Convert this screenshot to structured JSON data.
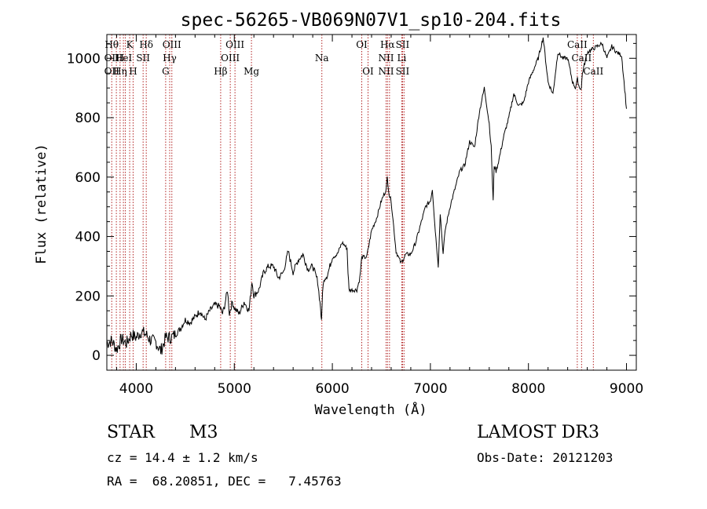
{
  "chart_data": {
    "type": "line",
    "title": "spec-56265-VB069N07V1_sp10-204.fits",
    "xlabel": "Wavelength (Å)",
    "ylabel": "Flux (relative)",
    "xlim": [
      3700,
      9100
    ],
    "ylim": [
      -50,
      1080
    ],
    "xticks": [
      4000,
      5000,
      6000,
      7000,
      8000,
      9000
    ],
    "yticks": [
      0,
      200,
      400,
      600,
      800,
      1000
    ],
    "grid": false,
    "series": [
      {
        "name": "flux",
        "x": [
          3700,
          3750,
          3800,
          3850,
          3900,
          3950,
          4000,
          4050,
          4100,
          4150,
          4200,
          4250,
          4280,
          4300,
          4350,
          4400,
          4450,
          4500,
          4550,
          4600,
          4650,
          4700,
          4750,
          4800,
          4850,
          4880,
          4900,
          4930,
          4950,
          4980,
          5000,
          5050,
          5100,
          5150,
          5180,
          5200,
          5250,
          5300,
          5350,
          5400,
          5450,
          5500,
          5550,
          5600,
          5650,
          5700,
          5750,
          5800,
          5850,
          5880,
          5890,
          5900,
          5920,
          5950,
          6000,
          6050,
          6100,
          6150,
          6160,
          6170,
          6200,
          6250,
          6280,
          6300,
          6350,
          6400,
          6450,
          6500,
          6550,
          6560,
          6580,
          6600,
          6650,
          6700,
          6750,
          6800,
          6850,
          6900,
          6950,
          7000,
          7020,
          7050,
          7080,
          7100,
          7130,
          7150,
          7200,
          7250,
          7300,
          7350,
          7400,
          7450,
          7500,
          7550,
          7600,
          7620,
          7640,
          7650,
          7670,
          7700,
          7750,
          7800,
          7850,
          7900,
          7950,
          8000,
          8050,
          8100,
          8150,
          8200,
          8250,
          8300,
          8350,
          8400,
          8450,
          8480,
          8500,
          8520,
          8540,
          8550,
          8600,
          8650,
          8700,
          8750,
          8800,
          8850,
          8900,
          8950,
          9000
        ],
        "values": [
          40,
          50,
          20,
          55,
          40,
          70,
          60,
          80,
          70,
          50,
          45,
          15,
          40,
          60,
          60,
          70,
          90,
          120,
          110,
          130,
          150,
          120,
          150,
          170,
          165,
          140,
          165,
          220,
          140,
          180,
          160,
          140,
          180,
          150,
          250,
          200,
          220,
          280,
          300,
          300,
          260,
          280,
          350,
          280,
          320,
          340,
          290,
          300,
          250,
          160,
          110,
          220,
          260,
          270,
          330,
          340,
          380,
          360,
          280,
          220,
          220,
          220,
          260,
          330,
          330,
          420,
          460,
          520,
          560,
          600,
          540,
          520,
          350,
          310,
          340,
          340,
          380,
          440,
          500,
          520,
          560,
          420,
          300,
          480,
          340,
          420,
          500,
          560,
          620,
          640,
          720,
          700,
          820,
          900,
          780,
          700,
          520,
          640,
          620,
          660,
          740,
          800,
          880,
          840,
          850,
          920,
          960,
          1000,
          1070,
          920,
          880,
          1020,
          1000,
          1000,
          920,
          900,
          930,
          900,
          900,
          950,
          1020,
          1030,
          1040,
          1050,
          1000,
          1040,
          1020,
          1010,
          830
        ],
        "color": "#000000"
      }
    ],
    "emission_lines": [
      {
        "x": 3750,
        "labels": [
          "Hθ",
          "OII",
          "OII"
        ]
      },
      {
        "x": 3797,
        "labels": [
          "",
          "",
          ""
        ]
      },
      {
        "x": 3835,
        "labels": [
          "",
          "H",
          "Hη"
        ]
      },
      {
        "x": 3869,
        "labels": [
          "",
          "HeI",
          ""
        ]
      },
      {
        "x": 3889,
        "labels": [
          "",
          "",
          ""
        ]
      },
      {
        "x": 3933,
        "labels": [
          "K",
          "",
          ""
        ]
      },
      {
        "x": 3968,
        "labels": [
          "",
          "",
          "H"
        ]
      },
      {
        "x": 4070,
        "labels": [
          "",
          "SII",
          ""
        ]
      },
      {
        "x": 4102,
        "labels": [
          "Hδ",
          "",
          ""
        ]
      },
      {
        "x": 4300,
        "labels": [
          "",
          "",
          "G"
        ]
      },
      {
        "x": 4341,
        "labels": [
          "",
          "Hγ",
          ""
        ]
      },
      {
        "x": 4363,
        "labels": [
          "OIII",
          "",
          ""
        ]
      },
      {
        "x": 4861,
        "labels": [
          "",
          "",
          "Hβ"
        ]
      },
      {
        "x": 4959,
        "labels": [
          "",
          "OIII",
          ""
        ]
      },
      {
        "x": 5007,
        "labels": [
          "OIII",
          "",
          ""
        ]
      },
      {
        "x": 5175,
        "labels": [
          "",
          "",
          "Mg"
        ]
      },
      {
        "x": 5893,
        "labels": [
          "",
          "Na",
          ""
        ]
      },
      {
        "x": 6300,
        "labels": [
          "OI",
          "",
          ""
        ]
      },
      {
        "x": 6364,
        "labels": [
          "",
          "",
          "OI"
        ]
      },
      {
        "x": 6548,
        "labels": [
          "",
          "NII",
          "NII"
        ]
      },
      {
        "x": 6563,
        "labels": [
          "Hα",
          "",
          ""
        ]
      },
      {
        "x": 6583,
        "labels": [
          "",
          "",
          ""
        ]
      },
      {
        "x": 6708,
        "labels": [
          "",
          "Li",
          ""
        ]
      },
      {
        "x": 6716,
        "labels": [
          "SII",
          "",
          "SII"
        ]
      },
      {
        "x": 6731,
        "labels": [
          "",
          "",
          ""
        ]
      },
      {
        "x": 8498,
        "labels": [
          "CaII",
          "",
          ""
        ]
      },
      {
        "x": 8542,
        "labels": [
          "",
          "CaII",
          ""
        ]
      },
      {
        "x": 8662,
        "labels": [
          "",
          "",
          "CaII"
        ]
      }
    ],
    "line_color": "#b22222"
  },
  "info": {
    "class": "STAR",
    "subclass": "M3",
    "survey": "LAMOST DR3",
    "cz": "cz = 14.4 ± 1.2 km/s",
    "obs_date": "Obs-Date: 20121203",
    "radec": "RA =  68.20851, DEC =   7.45763"
  }
}
